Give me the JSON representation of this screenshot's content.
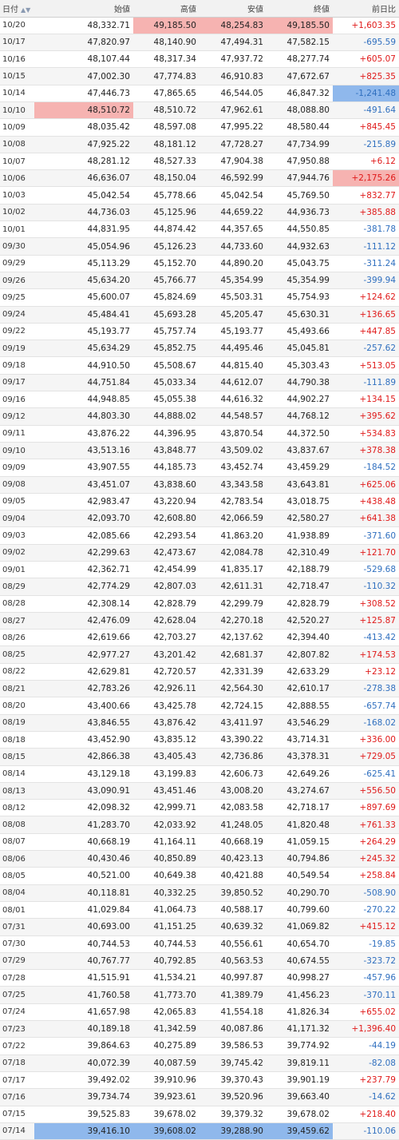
{
  "header": {
    "date": "日付",
    "open": "始値",
    "high": "高値",
    "low": "安値",
    "close": "終値",
    "change": "前日比",
    "sort_icon": "sort-triangle-icon"
  },
  "colors": {
    "positive": "#e01919",
    "negative": "#2f6fbf",
    "highlight_red": "#f6b3b1",
    "highlight_blue": "#8fb8ec"
  },
  "rows": [
    {
      "date": "10/20",
      "open": "48,332.71",
      "high": "49,185.50",
      "low": "48,254.83",
      "close": "49,185.50",
      "change": "+1,603.35",
      "hl": {
        "high": "red",
        "low": "red",
        "close": "red"
      }
    },
    {
      "date": "10/17",
      "open": "47,820.97",
      "high": "48,140.90",
      "low": "47,494.31",
      "close": "47,582.15",
      "change": "-695.59"
    },
    {
      "date": "10/16",
      "open": "48,107.44",
      "high": "48,317.34",
      "low": "47,937.72",
      "close": "48,277.74",
      "change": "+605.07"
    },
    {
      "date": "10/15",
      "open": "47,002.30",
      "high": "47,774.83",
      "low": "46,910.83",
      "close": "47,672.67",
      "change": "+825.35"
    },
    {
      "date": "10/14",
      "open": "47,446.73",
      "high": "47,865.65",
      "low": "46,544.05",
      "close": "46,847.32",
      "change": "-1,241.48",
      "hl": {
        "change": "blue"
      }
    },
    {
      "date": "10/10",
      "open": "48,510.72",
      "high": "48,510.72",
      "low": "47,962.61",
      "close": "48,088.80",
      "change": "-491.64",
      "hl": {
        "open": "red"
      }
    },
    {
      "date": "10/09",
      "open": "48,035.42",
      "high": "48,597.08",
      "low": "47,995.22",
      "close": "48,580.44",
      "change": "+845.45"
    },
    {
      "date": "10/08",
      "open": "47,925.22",
      "high": "48,181.12",
      "low": "47,728.27",
      "close": "47,734.99",
      "change": "-215.89"
    },
    {
      "date": "10/07",
      "open": "48,281.12",
      "high": "48,527.33",
      "low": "47,904.38",
      "close": "47,950.88",
      "change": "+6.12"
    },
    {
      "date": "10/06",
      "open": "46,636.07",
      "high": "48,150.04",
      "low": "46,592.99",
      "close": "47,944.76",
      "change": "+2,175.26",
      "hl": {
        "change": "red"
      }
    },
    {
      "date": "10/03",
      "open": "45,042.54",
      "high": "45,778.66",
      "low": "45,042.54",
      "close": "45,769.50",
      "change": "+832.77"
    },
    {
      "date": "10/02",
      "open": "44,736.03",
      "high": "45,125.96",
      "low": "44,659.22",
      "close": "44,936.73",
      "change": "+385.88"
    },
    {
      "date": "10/01",
      "open": "44,831.95",
      "high": "44,874.42",
      "low": "44,357.65",
      "close": "44,550.85",
      "change": "-381.78"
    },
    {
      "date": "09/30",
      "open": "45,054.96",
      "high": "45,126.23",
      "low": "44,733.60",
      "close": "44,932.63",
      "change": "-111.12"
    },
    {
      "date": "09/29",
      "open": "45,113.29",
      "high": "45,152.70",
      "low": "44,890.20",
      "close": "45,043.75",
      "change": "-311.24"
    },
    {
      "date": "09/26",
      "open": "45,634.20",
      "high": "45,766.77",
      "low": "45,354.99",
      "close": "45,354.99",
      "change": "-399.94"
    },
    {
      "date": "09/25",
      "open": "45,600.07",
      "high": "45,824.69",
      "low": "45,503.31",
      "close": "45,754.93",
      "change": "+124.62"
    },
    {
      "date": "09/24",
      "open": "45,484.41",
      "high": "45,693.28",
      "low": "45,205.47",
      "close": "45,630.31",
      "change": "+136.65"
    },
    {
      "date": "09/22",
      "open": "45,193.77",
      "high": "45,757.74",
      "low": "45,193.77",
      "close": "45,493.66",
      "change": "+447.85"
    },
    {
      "date": "09/19",
      "open": "45,634.29",
      "high": "45,852.75",
      "low": "44,495.46",
      "close": "45,045.81",
      "change": "-257.62"
    },
    {
      "date": "09/18",
      "open": "44,910.50",
      "high": "45,508.67",
      "low": "44,815.40",
      "close": "45,303.43",
      "change": "+513.05"
    },
    {
      "date": "09/17",
      "open": "44,751.84",
      "high": "45,033.34",
      "low": "44,612.07",
      "close": "44,790.38",
      "change": "-111.89"
    },
    {
      "date": "09/16",
      "open": "44,948.85",
      "high": "45,055.38",
      "low": "44,616.32",
      "close": "44,902.27",
      "change": "+134.15"
    },
    {
      "date": "09/12",
      "open": "44,803.30",
      "high": "44,888.02",
      "low": "44,548.57",
      "close": "44,768.12",
      "change": "+395.62"
    },
    {
      "date": "09/11",
      "open": "43,876.22",
      "high": "44,396.95",
      "low": "43,870.54",
      "close": "44,372.50",
      "change": "+534.83"
    },
    {
      "date": "09/10",
      "open": "43,513.16",
      "high": "43,848.77",
      "low": "43,509.02",
      "close": "43,837.67",
      "change": "+378.38"
    },
    {
      "date": "09/09",
      "open": "43,907.55",
      "high": "44,185.73",
      "low": "43,452.74",
      "close": "43,459.29",
      "change": "-184.52"
    },
    {
      "date": "09/08",
      "open": "43,451.07",
      "high": "43,838.60",
      "low": "43,343.58",
      "close": "43,643.81",
      "change": "+625.06"
    },
    {
      "date": "09/05",
      "open": "42,983.47",
      "high": "43,220.94",
      "low": "42,783.54",
      "close": "43,018.75",
      "change": "+438.48"
    },
    {
      "date": "09/04",
      "open": "42,093.70",
      "high": "42,608.80",
      "low": "42,066.59",
      "close": "42,580.27",
      "change": "+641.38"
    },
    {
      "date": "09/03",
      "open": "42,085.66",
      "high": "42,293.54",
      "low": "41,863.20",
      "close": "41,938.89",
      "change": "-371.60"
    },
    {
      "date": "09/02",
      "open": "42,299.63",
      "high": "42,473.67",
      "low": "42,084.78",
      "close": "42,310.49",
      "change": "+121.70"
    },
    {
      "date": "09/01",
      "open": "42,362.71",
      "high": "42,454.99",
      "low": "41,835.17",
      "close": "42,188.79",
      "change": "-529.68"
    },
    {
      "date": "08/29",
      "open": "42,774.29",
      "high": "42,807.03",
      "low": "42,611.31",
      "close": "42,718.47",
      "change": "-110.32"
    },
    {
      "date": "08/28",
      "open": "42,308.14",
      "high": "42,828.79",
      "low": "42,299.79",
      "close": "42,828.79",
      "change": "+308.52"
    },
    {
      "date": "08/27",
      "open": "42,476.09",
      "high": "42,628.04",
      "low": "42,270.18",
      "close": "42,520.27",
      "change": "+125.87"
    },
    {
      "date": "08/26",
      "open": "42,619.66",
      "high": "42,703.27",
      "low": "42,137.62",
      "close": "42,394.40",
      "change": "-413.42"
    },
    {
      "date": "08/25",
      "open": "42,977.27",
      "high": "43,201.42",
      "low": "42,681.37",
      "close": "42,807.82",
      "change": "+174.53"
    },
    {
      "date": "08/22",
      "open": "42,629.81",
      "high": "42,720.57",
      "low": "42,331.39",
      "close": "42,633.29",
      "change": "+23.12"
    },
    {
      "date": "08/21",
      "open": "42,783.26",
      "high": "42,926.11",
      "low": "42,564.30",
      "close": "42,610.17",
      "change": "-278.38"
    },
    {
      "date": "08/20",
      "open": "43,400.66",
      "high": "43,425.78",
      "low": "42,724.15",
      "close": "42,888.55",
      "change": "-657.74"
    },
    {
      "date": "08/19",
      "open": "43,846.55",
      "high": "43,876.42",
      "low": "43,411.97",
      "close": "43,546.29",
      "change": "-168.02"
    },
    {
      "date": "08/18",
      "open": "43,452.90",
      "high": "43,835.12",
      "low": "43,390.22",
      "close": "43,714.31",
      "change": "+336.00"
    },
    {
      "date": "08/15",
      "open": "42,866.38",
      "high": "43,405.43",
      "low": "42,736.86",
      "close": "43,378.31",
      "change": "+729.05"
    },
    {
      "date": "08/14",
      "open": "43,129.18",
      "high": "43,199.83",
      "low": "42,606.73",
      "close": "42,649.26",
      "change": "-625.41"
    },
    {
      "date": "08/13",
      "open": "43,090.91",
      "high": "43,451.46",
      "low": "43,008.20",
      "close": "43,274.67",
      "change": "+556.50"
    },
    {
      "date": "08/12",
      "open": "42,098.32",
      "high": "42,999.71",
      "low": "42,083.58",
      "close": "42,718.17",
      "change": "+897.69"
    },
    {
      "date": "08/08",
      "open": "41,283.70",
      "high": "42,033.92",
      "low": "41,248.05",
      "close": "41,820.48",
      "change": "+761.33"
    },
    {
      "date": "08/07",
      "open": "40,668.19",
      "high": "41,164.11",
      "low": "40,668.19",
      "close": "41,059.15",
      "change": "+264.29"
    },
    {
      "date": "08/06",
      "open": "40,430.46",
      "high": "40,850.89",
      "low": "40,423.13",
      "close": "40,794.86",
      "change": "+245.32"
    },
    {
      "date": "08/05",
      "open": "40,521.00",
      "high": "40,649.38",
      "low": "40,421.88",
      "close": "40,549.54",
      "change": "+258.84"
    },
    {
      "date": "08/04",
      "open": "40,118.81",
      "high": "40,332.25",
      "low": "39,850.52",
      "close": "40,290.70",
      "change": "-508.90"
    },
    {
      "date": "08/01",
      "open": "41,029.84",
      "high": "41,064.73",
      "low": "40,588.17",
      "close": "40,799.60",
      "change": "-270.22"
    },
    {
      "date": "07/31",
      "open": "40,693.00",
      "high": "41,151.25",
      "low": "40,639.32",
      "close": "41,069.82",
      "change": "+415.12"
    },
    {
      "date": "07/30",
      "open": "40,744.53",
      "high": "40,744.53",
      "low": "40,556.61",
      "close": "40,654.70",
      "change": "-19.85"
    },
    {
      "date": "07/29",
      "open": "40,767.77",
      "high": "40,792.85",
      "low": "40,563.53",
      "close": "40,674.55",
      "change": "-323.72"
    },
    {
      "date": "07/28",
      "open": "41,515.91",
      "high": "41,534.21",
      "low": "40,997.87",
      "close": "40,998.27",
      "change": "-457.96"
    },
    {
      "date": "07/25",
      "open": "41,760.58",
      "high": "41,773.70",
      "low": "41,389.79",
      "close": "41,456.23",
      "change": "-370.11"
    },
    {
      "date": "07/24",
      "open": "41,657.98",
      "high": "42,065.83",
      "low": "41,554.18",
      "close": "41,826.34",
      "change": "+655.02"
    },
    {
      "date": "07/23",
      "open": "40,189.18",
      "high": "41,342.59",
      "low": "40,087.86",
      "close": "41,171.32",
      "change": "+1,396.40"
    },
    {
      "date": "07/22",
      "open": "39,864.63",
      "high": "40,275.89",
      "low": "39,586.53",
      "close": "39,774.92",
      "change": "-44.19"
    },
    {
      "date": "07/18",
      "open": "40,072.39",
      "high": "40,087.59",
      "low": "39,745.42",
      "close": "39,819.11",
      "change": "-82.08"
    },
    {
      "date": "07/17",
      "open": "39,492.02",
      "high": "39,910.96",
      "low": "39,370.43",
      "close": "39,901.19",
      "change": "+237.79"
    },
    {
      "date": "07/16",
      "open": "39,734.74",
      "high": "39,923.61",
      "low": "39,520.96",
      "close": "39,663.40",
      "change": "-14.62"
    },
    {
      "date": "07/15",
      "open": "39,525.83",
      "high": "39,678.02",
      "low": "39,379.32",
      "close": "39,678.02",
      "change": "+218.40"
    },
    {
      "date": "07/14",
      "open": "39,416.10",
      "high": "39,608.02",
      "low": "39,288.90",
      "close": "39,459.62",
      "change": "-110.06",
      "hl": {
        "open": "blue",
        "high": "blue",
        "low": "blue",
        "close": "blue"
      }
    }
  ]
}
